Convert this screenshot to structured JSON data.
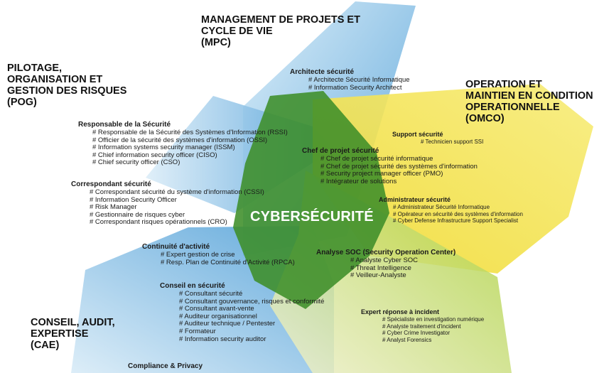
{
  "center": {
    "label": "CYBERSÉCURITÉ"
  },
  "regions": {
    "mpc": {
      "title": "MANAGEMENT DE PROJETS ET\nCYCLE DE VIE\n(MPC)",
      "color": "#5aa8dc"
    },
    "pog": {
      "title": "PILOTAGE,\nORGANISATION ET\nGESTION DES RISQUES\n(POG)",
      "color": "#5aa8dc"
    },
    "omco": {
      "title": "OPERATION ET\nMAINTIEN EN CONDITION\nOPERATIONNELLE\n(OMCO)",
      "color": "#f2e03c"
    },
    "cae": {
      "title": "CONSEIL, AUDIT,\nEXPERTISE\n(CAE)",
      "color": "#5aa8dc"
    },
    "core": {
      "color": "#3f8f2a"
    },
    "lime": {
      "color": "#9fcb2f"
    }
  },
  "roles": {
    "architecte": {
      "title": "Architecte sécurité",
      "items": [
        "# Architecte Sécurité Informatique",
        "# Information Security Architect"
      ]
    },
    "rssi": {
      "title": "Responsable de la Sécurité",
      "items": [
        "# Responsable de la Sécurité des Systèmes d'Information (RSSI)",
        "# Officier de la sécurité des systèmes d'information (OSSI)",
        "# Information systems security manager (ISSM)",
        "# Chief information security officer (CISO)",
        "# Chief security officer (CSO)"
      ]
    },
    "correspondant": {
      "title": "Correspondant sécurité",
      "items": [
        "# Correspondant sécurité du système d'information (CSSI)",
        "# Information Security Officer",
        "# Risk Manager",
        "# Gestionnaire de risques cyber",
        "# Correspondant risques opérationnels (CRO)"
      ]
    },
    "support": {
      "title": "Support sécurité",
      "items": [
        "# Technicien support SSI"
      ]
    },
    "chef_projet": {
      "title": "Chef de projet sécurité",
      "items": [
        "# Chef de projet sécurité informatique",
        "# Chef de projet sécurité des systèmes d'information",
        "# Security project manager officer (PMO)",
        "# Intégrateur de solutions"
      ]
    },
    "admin": {
      "title": "Administrateur sécurité",
      "items": [
        "# Administrateur Sécurité Informatique",
        "# Opérateur en sécurité des systèmes d'information",
        "# Cyber Defense Infrastructure Support Specialist"
      ]
    },
    "continuite": {
      "title": "Continuité d'activité",
      "items": [
        "# Expert gestion de crise",
        "# Resp. Plan de Continuité d'Activité (RPCA)"
      ]
    },
    "soc": {
      "title": "Analyse SOC (Security Operation Center)",
      "items": [
        "# Analyste Cyber SOC",
        "# Threat Intelligence",
        "# Veilleur-Analyste"
      ]
    },
    "conseil": {
      "title": "Conseil en sécurité",
      "items": [
        "# Consultant sécurité",
        "# Consultant gouvernance, risques et conformité",
        "# Consultant avant-vente",
        "# Auditeur organisationnel",
        "# Auditeur technique / Pentester",
        "# Formateur",
        "# Information security auditor"
      ]
    },
    "expert_incident": {
      "title": "Expert réponse à incident",
      "items": [
        "# Spécialiste en investigation numérique",
        "# Analyste traitement d'incident",
        "# Cyber Crime Investigator",
        "# Analyst Forensics"
      ]
    },
    "compliance": {
      "title": "Compliance & Privacy",
      "items": []
    }
  }
}
